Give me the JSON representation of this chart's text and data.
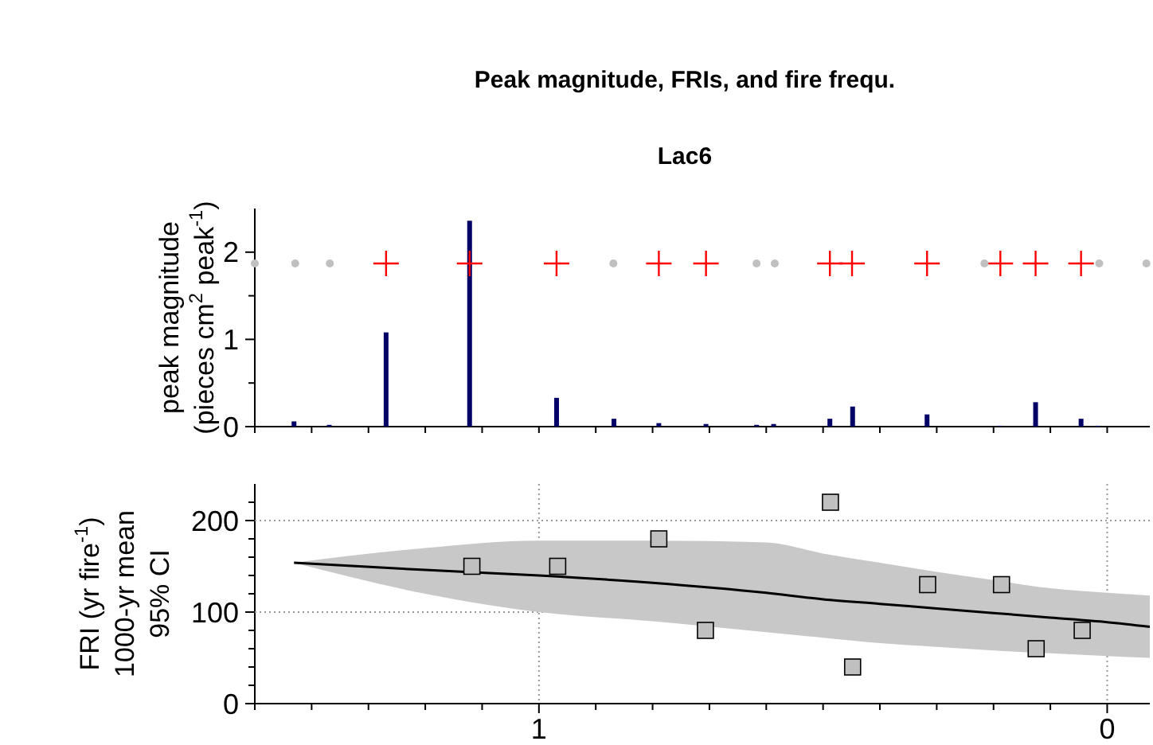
{
  "chart_data": [
    {
      "type": "bar",
      "title": "Peak magnitude, FRIs, and fire frequ.",
      "subtitle": "Lac6",
      "ylabel": "peak magnitude\n(pieces cm$^{2}$ peak$^{-1}$)",
      "xlim": [
        1.5,
        -0.075
      ],
      "xticks": [
        {
          "value": 1.5,
          "label": null
        },
        {
          "value": 1.4,
          "label": null
        },
        {
          "value": 1.3,
          "label": null
        },
        {
          "value": 1.2,
          "label": null
        },
        {
          "value": 1.1,
          "label": null
        },
        {
          "value": 1,
          "label": null
        },
        {
          "value": 0.9,
          "label": null
        },
        {
          "value": 0.8,
          "label": null
        },
        {
          "value": 0.7,
          "label": null
        },
        {
          "value": 0.6,
          "label": null
        },
        {
          "value": 0.5,
          "label": null
        },
        {
          "value": 0.4,
          "label": null
        },
        {
          "value": 0.3,
          "label": null
        },
        {
          "value": 0.2,
          "label": null
        },
        {
          "value": 0.1,
          "label": null
        },
        {
          "value": 0,
          "label": null
        }
      ],
      "ylim": [
        0,
        2.5
      ],
      "yticks": [
        0,
        {
          "value": 0.5,
          "label": null
        },
        1,
        {
          "value": 1.5,
          "label": null
        },
        2
      ],
      "tick_labels": "y",
      "grid": false,
      "series": [
        {
          "color": "#000066",
          "x": [
            1.431,
            1.369,
            1.269,
            1.122,
            0.969,
            0.868,
            0.789,
            0.706,
            0.617,
            0.587,
            0.488,
            0.448,
            0.317,
            0.189,
            0.126,
            0.046,
            0.016
          ],
          "values": [
            0.06,
            0.02,
            1.08,
            2.36,
            0.33,
            0.09,
            0.04,
            0.03,
            0.02,
            0.03,
            0.09,
            0.23,
            0.14,
            0.01,
            0.28,
            0.09,
            0.01
          ]
        },
        {
          "type": "scatter",
          "marker": "cross",
          "color": "#ff0000",
          "x": [
            1.269,
            1.122,
            0.969,
            0.789,
            0.706,
            0.488,
            0.449,
            0.317,
            0.188,
            0.126,
            0.046
          ],
          "values": [
            1.87,
            1.87,
            1.87,
            1.87,
            1.87,
            1.87,
            1.87,
            1.87,
            1.87,
            1.87,
            1.87
          ]
        },
        {
          "type": "scatter",
          "marker": "circle",
          "color": "#c0c0c0",
          "x": [
            1.5,
            1.429,
            1.368,
            0.869,
            0.617,
            0.585,
            0.216,
            0.014,
            -0.069
          ],
          "values": [
            1.87,
            1.87,
            1.87,
            1.87,
            1.87,
            1.87,
            1.87,
            1.87,
            1.87
          ]
        }
      ]
    },
    {
      "type": "scatter",
      "ylabel": "FRI (yr fire$^{-1}$)\n1000-yr mean\n95% CI",
      "xlim": [
        1.5,
        -0.075
      ],
      "xticks": [
        {
          "value": 1.5,
          "label": null
        },
        {
          "value": 1.4,
          "label": null
        },
        {
          "value": 1.3,
          "label": null
        },
        {
          "value": 1.2,
          "label": null
        },
        {
          "value": 1.1,
          "label": null
        },
        1,
        {
          "value": 0.9,
          "label": null
        },
        {
          "value": 0.8,
          "label": null
        },
        {
          "value": 0.7,
          "label": null
        },
        {
          "value": 0.6,
          "label": null
        },
        {
          "value": 0.5,
          "label": null
        },
        {
          "value": 0.4,
          "label": null
        },
        {
          "value": 0.3,
          "label": null
        },
        {
          "value": 0.2,
          "label": null
        },
        {
          "value": 0.1,
          "label": null
        },
        0
      ],
      "ylim": [
        0,
        240
      ],
      "yticks": [
        0,
        {
          "value": 20,
          "label": null
        },
        {
          "value": 40,
          "label": null
        },
        {
          "value": 60,
          "label": null
        },
        {
          "value": 80,
          "label": null
        },
        100,
        {
          "value": 120,
          "label": null
        },
        {
          "value": 140,
          "label": null
        },
        {
          "value": 160,
          "label": null
        },
        {
          "value": 180,
          "label": null
        },
        200,
        {
          "value": 220,
          "label": null
        }
      ],
      "grid": true,
      "series": [
        {
          "type": "line",
          "color": "#000000",
          "line_style": "solid",
          "x": [
            1.431,
            1.2,
            1.0,
            0.8,
            0.6,
            0.5,
            0.4,
            0.3,
            0.2,
            0.1,
            0.0,
            -0.075
          ],
          "values": [
            154,
            146,
            140,
            132,
            121,
            114,
            109,
            104,
            99,
            94,
            89,
            84
          ],
          "lower": [
            154,
            120,
            100,
            90,
            78,
            72,
            66,
            62,
            58,
            55,
            52,
            50
          ],
          "upper": [
            154,
            170,
            178,
            178,
            176,
            164,
            154,
            144,
            135,
            126,
            121,
            118
          ]
        },
        {
          "marker": "square",
          "color": "#c0c0c0",
          "x": [
            1.118,
            0.967,
            0.789,
            0.707,
            0.487,
            0.448,
            0.316,
            0.186,
            0.125,
            0.044
          ],
          "values": [
            150,
            150,
            180,
            80,
            220,
            40,
            130,
            130,
            60,
            80
          ]
        }
      ]
    }
  ]
}
